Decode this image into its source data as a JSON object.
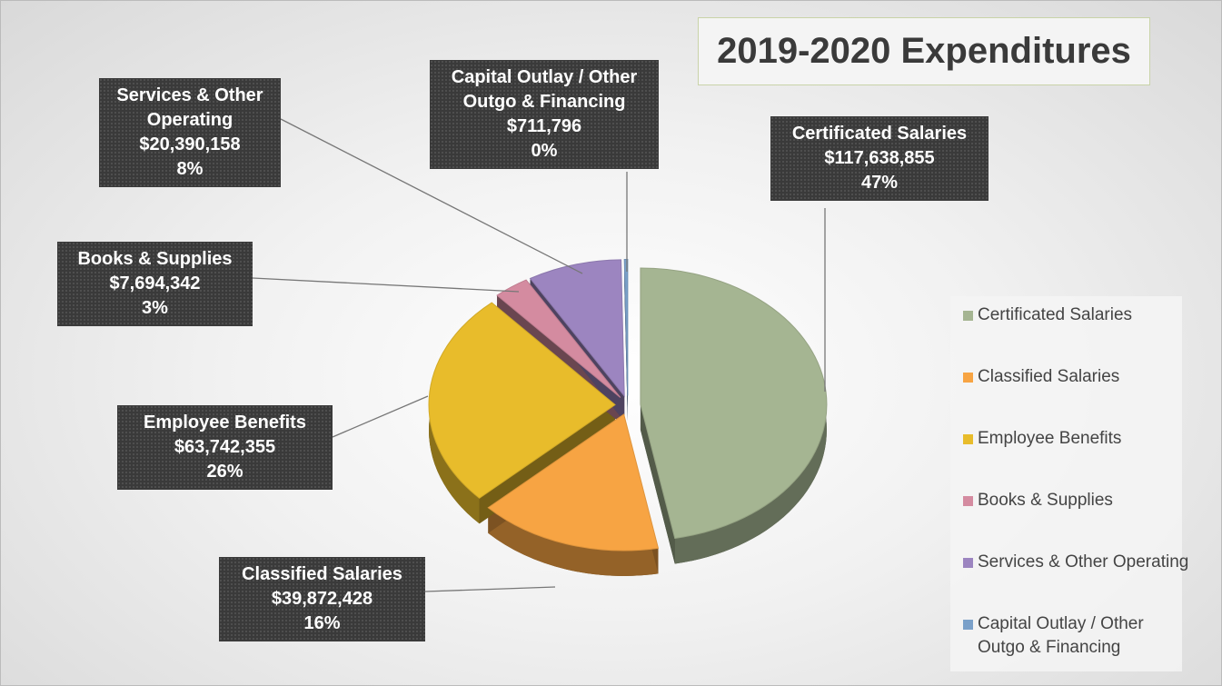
{
  "chart_data": {
    "type": "pie",
    "title": "2019-2020 Expenditures",
    "categories": [
      "Certificated Salaries",
      "Classified Salaries",
      "Employee Benefits",
      "Books & Supplies",
      "Services & Other Operating",
      "Capital Outlay / Other Outgo & Financing"
    ],
    "values": [
      117638855,
      39872428,
      63742355,
      7694342,
      20390158,
      711796
    ],
    "value_labels": [
      "$117,638,855",
      "$39,872,428",
      "$63,742,355",
      "$7,694,342",
      "$20,390,158",
      "$711,796"
    ],
    "percentages": [
      47,
      16,
      26,
      3,
      8,
      0
    ],
    "percentage_labels": [
      "47%",
      "16%",
      "26%",
      "3%",
      "8%",
      "0%"
    ],
    "colors": [
      "#a5b592",
      "#f7a443",
      "#e8bc2b",
      "#d48ba0",
      "#9c85c0",
      "#7aa0c9"
    ],
    "legend": "right"
  }
}
